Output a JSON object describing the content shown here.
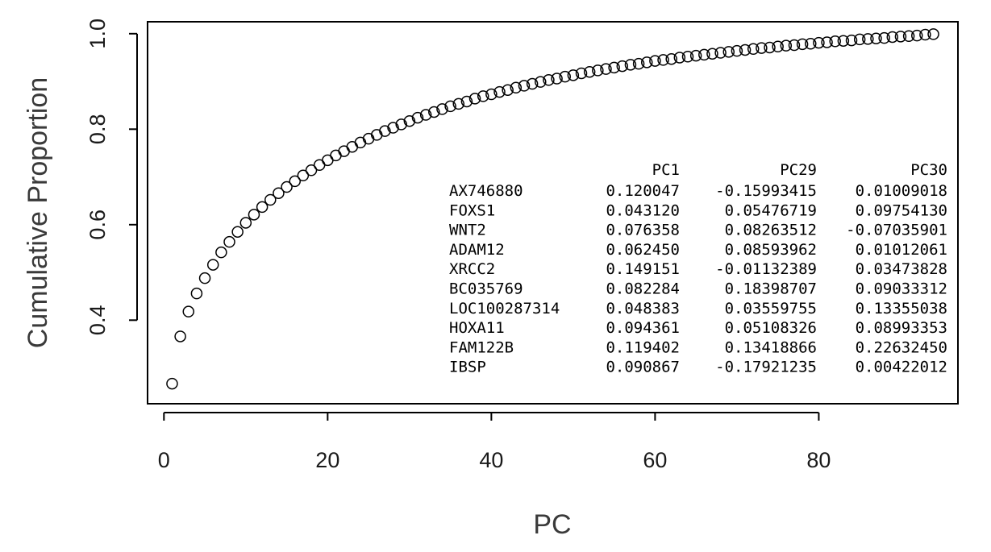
{
  "chart_data": {
    "type": "scatter",
    "xlabel": "PC",
    "ylabel": "Cumulative Proportion",
    "xlim": [
      -2,
      97
    ],
    "ylim": [
      0.225,
      1.025
    ],
    "x_ticks": [
      0,
      20,
      40,
      60,
      80
    ],
    "y_ticks": [
      0.4,
      0.6,
      0.8,
      1.0
    ],
    "x_tick_labels": [
      "0",
      "20",
      "40",
      "60",
      "80"
    ],
    "y_tick_labels": [
      "0.4",
      "0.6",
      "0.8",
      "1.0"
    ],
    "grid": false,
    "marker": "open-circle",
    "point_color": "#000000",
    "series": [
      {
        "x": [
          1,
          2,
          3,
          4,
          5,
          6,
          7,
          8,
          9,
          10,
          11,
          12,
          13,
          14,
          15,
          16,
          17,
          18,
          19,
          20,
          21,
          22,
          23,
          24,
          25,
          26,
          27,
          28,
          29,
          30,
          31,
          32,
          33,
          34,
          35,
          36,
          37,
          38,
          39,
          40,
          41,
          42,
          43,
          44,
          45,
          46,
          47,
          48,
          49,
          50,
          51,
          52,
          53,
          54,
          55,
          56,
          57,
          58,
          59,
          60,
          61,
          62,
          63,
          64,
          65,
          66,
          67,
          68,
          69,
          70,
          71,
          72,
          73,
          74,
          75,
          76,
          77,
          78,
          79,
          80,
          81,
          82,
          83,
          84,
          85,
          86,
          87,
          88,
          89,
          90,
          91,
          92,
          93,
          94
        ],
        "y": [
          0.267,
          0.366,
          0.418,
          0.456,
          0.488,
          0.516,
          0.542,
          0.564,
          0.585,
          0.604,
          0.621,
          0.637,
          0.652,
          0.666,
          0.679,
          0.691,
          0.703,
          0.714,
          0.725,
          0.735,
          0.745,
          0.754,
          0.763,
          0.772,
          0.78,
          0.788,
          0.796,
          0.803,
          0.81,
          0.817,
          0.824,
          0.83,
          0.836,
          0.842,
          0.848,
          0.853,
          0.858,
          0.864,
          0.869,
          0.873,
          0.878,
          0.882,
          0.887,
          0.891,
          0.895,
          0.899,
          0.903,
          0.906,
          0.91,
          0.913,
          0.917,
          0.92,
          0.923,
          0.926,
          0.929,
          0.932,
          0.935,
          0.937,
          0.94,
          0.943,
          0.945,
          0.947,
          0.95,
          0.952,
          0.954,
          0.956,
          0.958,
          0.96,
          0.962,
          0.964,
          0.966,
          0.968,
          0.97,
          0.971,
          0.973,
          0.975,
          0.976,
          0.978,
          0.979,
          0.981,
          0.982,
          0.984,
          0.985,
          0.986,
          0.988,
          0.989,
          0.99,
          0.991,
          0.993,
          0.994,
          0.995,
          0.996,
          0.998,
          0.999
        ]
      }
    ],
    "table": {
      "columns": [
        "PC1",
        "PC29",
        "PC30"
      ],
      "rows": [
        {
          "gene": "AX746880",
          "values": [
            "0.120047",
            "-0.15993415",
            "0.01009018"
          ]
        },
        {
          "gene": "FOXS1",
          "values": [
            "0.043120",
            "0.05476719",
            "0.09754130"
          ]
        },
        {
          "gene": "WNT2",
          "values": [
            "0.076358",
            "0.08263512",
            "-0.07035901"
          ]
        },
        {
          "gene": "ADAM12",
          "values": [
            "0.062450",
            "0.08593962",
            "0.01012061"
          ]
        },
        {
          "gene": "XRCC2",
          "values": [
            "0.149151",
            "-0.01132389",
            "0.03473828"
          ]
        },
        {
          "gene": "BC035769",
          "values": [
            "0.082284",
            "0.18398707",
            "0.09033312"
          ]
        },
        {
          "gene": "LOC100287314",
          "values": [
            "0.048383",
            "0.03559755",
            "0.13355038"
          ]
        },
        {
          "gene": "HOXA11",
          "values": [
            "0.094361",
            "0.05108326",
            "0.08993353"
          ]
        },
        {
          "gene": "FAM122B",
          "values": [
            "0.119402",
            "0.13418866",
            "0.22632450"
          ]
        },
        {
          "gene": "IBSP",
          "values": [
            "0.090867",
            "-0.17921235",
            "0.00422012"
          ]
        }
      ]
    }
  }
}
